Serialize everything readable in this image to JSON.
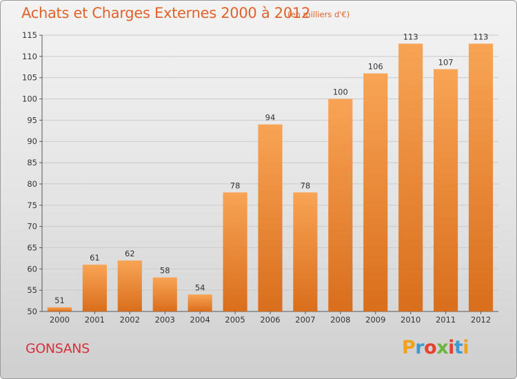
{
  "header": {
    "title": "Achats et Charges Externes 2000 à 2012",
    "subtitle": "(en milliers d'€)"
  },
  "footer": {
    "place": "GONSANS",
    "logo_text": "Proxiti",
    "logo_colors": [
      "#f2a11c",
      "#3d9ad1",
      "#e8402c",
      "#6cb33f",
      "#e8402c",
      "#3d9ad1",
      "#f2a11c"
    ]
  },
  "colors": {
    "bar_top": "#f8a455",
    "bar_bottom": "#d96e1c",
    "title": "#e0622b",
    "place": "#d4323b",
    "grid": "#c9c9c9"
  },
  "chart_data": {
    "type": "bar",
    "title": "Achats et Charges Externes 2000 à 2012",
    "subtitle": "(en milliers d'€)",
    "categories": [
      "2000",
      "2001",
      "2002",
      "2003",
      "2004",
      "2005",
      "2006",
      "2007",
      "2008",
      "2009",
      "2010",
      "2011",
      "2012"
    ],
    "values": [
      51,
      61,
      62,
      58,
      54,
      78,
      94,
      78,
      100,
      106,
      113,
      107,
      113
    ],
    "ylim": [
      50,
      115
    ],
    "yticks": [
      50,
      55,
      60,
      65,
      70,
      75,
      80,
      85,
      90,
      95,
      100,
      105,
      110,
      115
    ],
    "grid": true
  }
}
